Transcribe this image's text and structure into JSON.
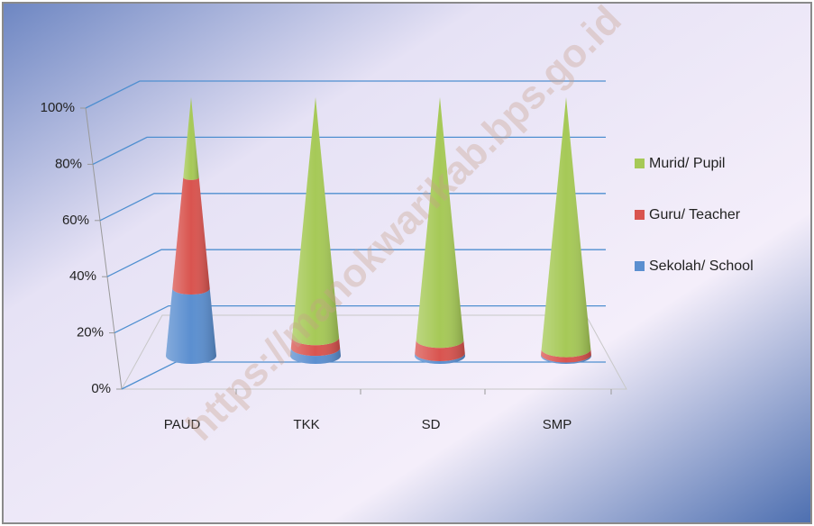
{
  "chart_data": {
    "type": "cone",
    "categories": [
      "PAUD",
      "TKK",
      "SD",
      "SMP"
    ],
    "series": [
      {
        "name": "Sekolah/ School",
        "color": "#5b8fd0",
        "values": [
          26,
          3,
          1,
          0.5
        ]
      },
      {
        "name": "Guru/ Teacher",
        "color": "#d9544f",
        "values": [
          43,
          4,
          5,
          2
        ]
      },
      {
        "name": "Murid/ Pupil",
        "color": "#a6c957",
        "values": [
          31,
          93,
          94,
          97.5
        ]
      }
    ],
    "ylim": [
      0,
      100
    ],
    "yticks": [
      {
        "value": 0,
        "label": "0%"
      },
      {
        "value": 20,
        "label": "20%"
      },
      {
        "value": 40,
        "label": "40%"
      },
      {
        "value": 60,
        "label": "60%"
      },
      {
        "value": 80,
        "label": "80%"
      },
      {
        "value": 100,
        "label": "100%"
      }
    ],
    "grid": true,
    "legend": "right",
    "watermark": "https://manokwarikab.bps.go.id"
  }
}
